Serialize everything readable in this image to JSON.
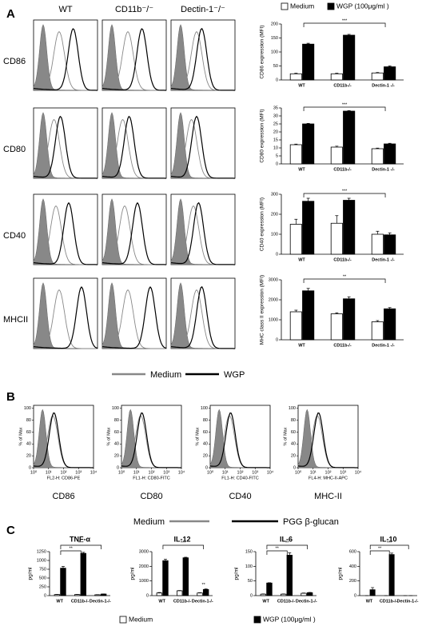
{
  "panel_labels": [
    "A",
    "B",
    "C"
  ],
  "panel_a": {
    "columns": [
      "WT",
      "CD11b⁻/⁻",
      "Dectin-1⁻/⁻"
    ],
    "rows": [
      "CD86",
      "CD80",
      "CD40",
      "MHCII"
    ],
    "legend": [
      "Medium",
      "WGP"
    ]
  },
  "panel_b": {
    "markers": [
      "CD86",
      "CD80",
      "CD40",
      "MHC-II"
    ],
    "y_label": "% of Max",
    "x_labels": [
      "FL2-H: CD86-PE",
      "FL1-H: CD80-FITC",
      "FL1-H: CD40-FITC",
      "FL4-H: MHC-II-APC"
    ],
    "yticks": [
      0,
      20,
      40,
      60,
      80,
      100
    ],
    "ylim": [
      0,
      105
    ],
    "xlim": [
      1,
      10000
    ],
    "xticks": [
      {
        "value": 1,
        "label": "10⁰"
      },
      {
        "value": 10,
        "label": "10¹"
      },
      {
        "value": 100,
        "label": "10²"
      },
      {
        "value": 1000,
        "label": "10³"
      },
      {
        "value": 10000,
        "label": "10⁴"
      }
    ],
    "legend": [
      "Medium",
      "PGG β-glucan"
    ]
  },
  "chart_data": [
    {
      "type": "bar",
      "y_label": "CD86 expression (MFI)",
      "categories": [
        "WT",
        "CD11b-/-",
        "Dectin-1 -/-"
      ],
      "series": [
        {
          "name": "Medium",
          "color": "#ffffff",
          "values": [
            22,
            22,
            25
          ],
          "errors": [
            2,
            2,
            2
          ]
        },
        {
          "name": "WGP (100μg/ml )",
          "color": "#000000",
          "values": [
            128,
            160,
            47
          ],
          "errors": [
            3,
            3,
            3
          ]
        }
      ],
      "ylim": [
        0,
        200
      ],
      "yticks": [
        0,
        50,
        100,
        150,
        200
      ],
      "annotations": [
        "***"
      ]
    },
    {
      "type": "bar",
      "y_label": "CD80 expression (MFI)",
      "categories": [
        "WT",
        "CD11b-/-",
        "Dectin-1 -/-"
      ],
      "series": [
        {
          "color": "#ffffff",
          "values": [
            12,
            10.5,
            9.5
          ],
          "errors": [
            0.4,
            0.6,
            0.4
          ]
        },
        {
          "color": "#000000",
          "values": [
            25,
            33,
            12.5
          ],
          "errors": [
            0.3,
            0.3,
            0.4
          ]
        }
      ],
      "ylim": [
        0,
        35
      ],
      "yticks": [
        0,
        5,
        10,
        15,
        20,
        25,
        30,
        35
      ],
      "annotations": [
        "***"
      ]
    },
    {
      "type": "bar",
      "y_label": "CD40 expression (MFI)",
      "categories": [
        "WT",
        "CD11b-/-",
        "Dectin-1 -/-"
      ],
      "series": [
        {
          "color": "#ffffff",
          "values": [
            150,
            155,
            100
          ],
          "errors": [
            25,
            38,
            15
          ]
        },
        {
          "color": "#000000",
          "values": [
            265,
            270,
            97
          ],
          "errors": [
            15,
            10,
            10
          ]
        }
      ],
      "ylim": [
        0,
        300
      ],
      "yticks": [
        0,
        100,
        200,
        300
      ],
      "annotations": [
        "***"
      ]
    },
    {
      "type": "bar",
      "y_label": "MHC class II expression (MFI)",
      "categories": [
        "WT",
        "CD11b-/-",
        "Dectin-1 -/-"
      ],
      "series": [
        {
          "color": "#ffffff",
          "values": [
            1400,
            1300,
            900
          ],
          "errors": [
            80,
            50,
            60
          ]
        },
        {
          "color": "#000000",
          "values": [
            2450,
            2050,
            1550
          ],
          "errors": [
            120,
            100,
            60
          ]
        }
      ],
      "ylim": [
        0,
        3000
      ],
      "yticks": [
        0,
        1000,
        2000,
        3000
      ],
      "annotations": [
        "**"
      ]
    },
    {
      "type": "bar",
      "title": "TNF-α",
      "y_label": "pg/ml",
      "categories": [
        "WT",
        "CD11b-/-",
        "Dectin-1-/-"
      ],
      "series": [
        {
          "name": "Medium",
          "color": "#ffffff",
          "values": [
            30,
            30,
            25
          ],
          "errors": [
            5,
            5,
            5
          ]
        },
        {
          "name": "WGP (100μg/ml )",
          "color": "#000000",
          "values": [
            780,
            1200,
            45
          ],
          "errors": [
            50,
            30,
            5
          ]
        }
      ],
      "ylim": [
        0,
        1250
      ],
      "yticks": [
        0,
        250,
        500,
        750,
        1000,
        1250
      ],
      "annotations": [
        "**",
        "***"
      ]
    },
    {
      "type": "bar",
      "title": "IL-12",
      "y_label": "pg/ml",
      "categories": [
        "WT",
        "CD11b-/-",
        "Dectin-1-/-"
      ],
      "series": [
        {
          "color": "#ffffff",
          "values": [
            180,
            330,
            180
          ],
          "errors": [
            30,
            20,
            20
          ]
        },
        {
          "color": "#000000",
          "values": [
            2380,
            2580,
            420
          ],
          "errors": [
            100,
            40,
            40
          ]
        }
      ],
      "ylim": [
        0,
        3000
      ],
      "yticks": [
        0,
        1000,
        2000,
        3000
      ],
      "annotations": [
        "**",
        "***"
      ]
    },
    {
      "type": "bar",
      "title": "IL-6",
      "y_label": "pg/ml",
      "categories": [
        "WT",
        "CD11b-/-",
        "Dectin-1-/-"
      ],
      "series": [
        {
          "color": "#ffffff",
          "values": [
            5,
            5,
            8
          ],
          "errors": [
            1,
            1,
            1
          ]
        },
        {
          "color": "#000000",
          "values": [
            43,
            138,
            10
          ],
          "errors": [
            1,
            8,
            1
          ]
        }
      ],
      "ylim": [
        0,
        150
      ],
      "yticks": [
        0,
        50,
        100,
        150
      ],
      "annotations": [
        "**",
        "**"
      ]
    },
    {
      "type": "bar",
      "title": "IL-10",
      "y_label": "pg/ml",
      "categories": [
        "WT",
        "CD11b-/-",
        "Dectin-1-/-"
      ],
      "series": [
        {
          "color": "#ffffff",
          "values": [
            0,
            0,
            0
          ],
          "errors": [
            0,
            0,
            0
          ]
        },
        {
          "color": "#000000",
          "values": [
            80,
            560,
            0
          ],
          "errors": [
            30,
            20,
            0
          ]
        }
      ],
      "ylim": [
        0,
        600
      ],
      "yticks": [
        0,
        200,
        400,
        600
      ],
      "annotations": [
        "**",
        "***"
      ]
    }
  ]
}
